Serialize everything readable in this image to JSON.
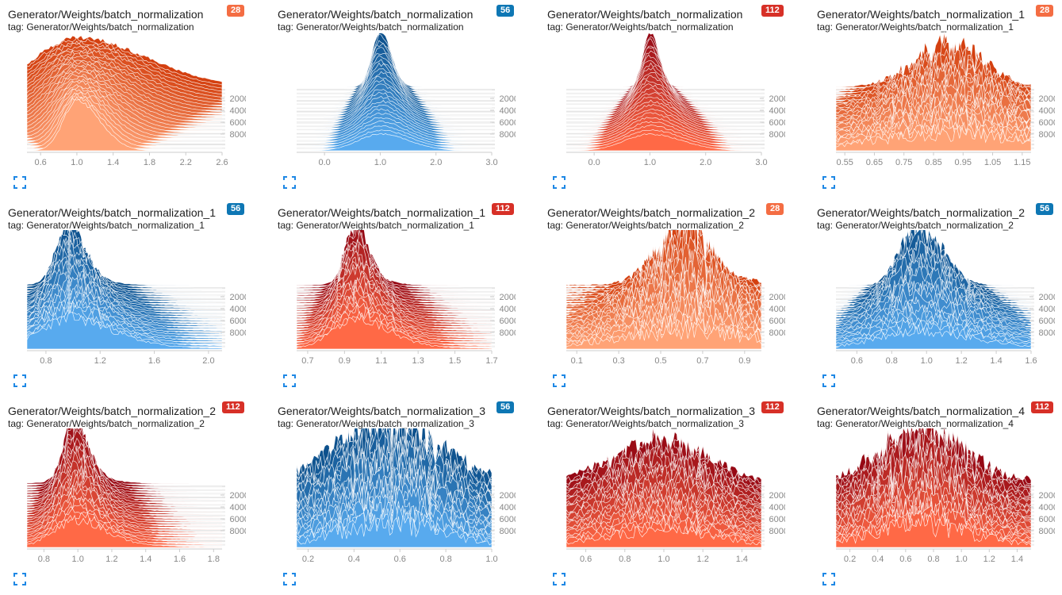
{
  "colors": {
    "c28": "#f46d43",
    "c56": "#0e77b4",
    "c112": "#d73027"
  },
  "palettes": {
    "28": {
      "light": [
        255,
        163,
        118
      ],
      "dark": [
        212,
        64,
        16
      ],
      "badge": "#f46d43"
    },
    "56": {
      "light": [
        88,
        170,
        238
      ],
      "dark": [
        12,
        80,
        140
      ],
      "badge": "#0e77b4"
    },
    "112": {
      "light": [
        255,
        105,
        70
      ],
      "dark": [
        150,
        8,
        20
      ],
      "badge": "#d73027"
    }
  },
  "panels": [
    {
      "title": "Generator/Weights/batch_normalization",
      "tag": "tag: Generator/Weights/batch_normalization",
      "badge": "28",
      "chart_data": {
        "type": "histogram",
        "xlim": [
          0.45,
          2.6
        ],
        "xticks": [
          0.6,
          1.0,
          1.4,
          1.8,
          2.2,
          2.6
        ],
        "xtick_labels": [
          "0.6",
          "1.0",
          "1.4",
          "1.8",
          "2.2",
          "2.6"
        ],
        "step_ticks": [
          "2000",
          "4000",
          "6000",
          "8000"
        ],
        "center": 1.0,
        "spread": [
          0.15,
          0.45
        ],
        "skew": 0.7,
        "tail": 0,
        "noise": 0.05,
        "peak_front": 0.9,
        "peak_back": 0.9
      }
    },
    {
      "title": "Generator/Weights/batch_normalization",
      "tag": "tag: Generator/Weights/batch_normalization",
      "badge": "56",
      "chart_data": {
        "type": "histogram",
        "xlim": [
          -0.5,
          3.0
        ],
        "xticks": [
          0.0,
          1.0,
          2.0,
          3.0
        ],
        "xtick_labels": [
          "0.0",
          "1.0",
          "2.0",
          "3.0"
        ],
        "step_ticks": [
          "2000",
          "4000",
          "6000",
          "8000"
        ],
        "center": 1.0,
        "spread": [
          0.4,
          0.15
        ],
        "skew": 0.3,
        "tail": 0,
        "noise": 0.05,
        "peak_front": 0.3,
        "peak_back": 1.0
      }
    },
    {
      "title": "Generator/Weights/batch_normalization",
      "tag": "tag: Generator/Weights/batch_normalization",
      "badge": "112",
      "chart_data": {
        "type": "histogram",
        "xlim": [
          -0.5,
          3.0
        ],
        "xticks": [
          0.0,
          1.0,
          2.0,
          3.0
        ],
        "xtick_labels": [
          "0.0",
          "1.0",
          "2.0",
          "3.0"
        ],
        "step_ticks": [
          "2000",
          "4000",
          "6000",
          "8000"
        ],
        "center": 1.0,
        "spread": [
          0.45,
          0.12
        ],
        "skew": 0.3,
        "tail": 0,
        "noise": 0.05,
        "peak_front": 0.3,
        "peak_back": 1.0
      }
    },
    {
      "title": "Generator/Weights/batch_normalization_1",
      "tag": "tag: Generator/Weights/batch_normalization_1",
      "badge": "28",
      "chart_data": {
        "type": "histogram",
        "xlim": [
          0.52,
          1.18
        ],
        "xticks": [
          0.55,
          0.65,
          0.75,
          0.85,
          0.95,
          1.05,
          1.15
        ],
        "xtick_labels": [
          "0.55",
          "0.65",
          "0.75",
          "0.85",
          "0.95",
          "1.05",
          "1.15"
        ],
        "step_ticks": [
          "2000",
          "4000",
          "6000",
          "8000"
        ],
        "center": 0.9,
        "spread": [
          0.25,
          0.12
        ],
        "skew": 0,
        "tail": 0,
        "noise": 0.45,
        "peak_front": 0.3,
        "peak_back": 0.7
      }
    },
    {
      "title": "Generator/Weights/batch_normalization_1",
      "tag": "tag: Generator/Weights/batch_normalization_1",
      "badge": "56",
      "chart_data": {
        "type": "histogram",
        "xlim": [
          0.66,
          2.1
        ],
        "xticks": [
          0.8,
          1.2,
          1.6,
          2.0
        ],
        "xtick_labels": [
          "0.8",
          "1.2",
          "1.6",
          "2.0"
        ],
        "step_ticks": [
          "2000",
          "4000",
          "6000",
          "8000"
        ],
        "center": 0.95,
        "spread": [
          0.2,
          0.08
        ],
        "skew": 0.6,
        "tail": 1,
        "noise": 0.2,
        "peak_front": 0.5,
        "peak_back": 1.0
      }
    },
    {
      "title": "Generator/Weights/batch_normalization_1",
      "tag": "tag: Generator/Weights/batch_normalization_1",
      "badge": "112",
      "chart_data": {
        "type": "histogram",
        "xlim": [
          0.64,
          1.7
        ],
        "xticks": [
          0.7,
          0.9,
          1.1,
          1.3,
          1.5,
          1.7
        ],
        "xtick_labels": [
          "0.7",
          "0.9",
          "1.1",
          "1.3",
          "1.5",
          "1.7"
        ],
        "step_ticks": [
          "2000",
          "4000",
          "6000",
          "8000"
        ],
        "center": 0.95,
        "spread": [
          0.12,
          0.05
        ],
        "skew": 0.5,
        "tail": 1,
        "noise": 0.2,
        "peak_front": 0.5,
        "peak_back": 1.0
      }
    },
    {
      "title": "Generator/Weights/batch_normalization_2",
      "tag": "tag: Generator/Weights/batch_normalization_2",
      "badge": "28",
      "chart_data": {
        "type": "histogram",
        "xlim": [
          0.05,
          0.98
        ],
        "xticks": [
          0.1,
          0.3,
          0.5,
          0.7,
          0.9
        ],
        "xtick_labels": [
          "0.1",
          "0.3",
          "0.5",
          "0.7",
          "0.9"
        ],
        "step_ticks": [
          "2000",
          "4000",
          "6000",
          "8000"
        ],
        "center": 0.6,
        "spread": [
          0.3,
          0.12
        ],
        "skew": 0,
        "tail": 1,
        "noise": 0.5,
        "peak_front": 0.3,
        "peak_back": 0.9
      }
    },
    {
      "title": "Generator/Weights/batch_normalization_2",
      "tag": "tag: Generator/Weights/batch_normalization_2",
      "badge": "56",
      "chart_data": {
        "type": "histogram",
        "xlim": [
          0.48,
          1.6
        ],
        "xticks": [
          0.6,
          0.8,
          1.0,
          1.2,
          1.4,
          1.6
        ],
        "xtick_labels": [
          "0.6",
          "0.8",
          "1.0",
          "1.2",
          "1.4",
          "1.6"
        ],
        "step_ticks": [
          "2000",
          "4000",
          "6000",
          "8000"
        ],
        "center": 0.95,
        "spread": [
          0.25,
          0.1
        ],
        "skew": 0.4,
        "tail": 0,
        "noise": 0.35,
        "peak_front": 0.3,
        "peak_back": 1.0
      }
    },
    {
      "title": "Generator/Weights/batch_normalization_2",
      "tag": "tag: Generator/Weights/batch_normalization_2",
      "badge": "112",
      "chart_data": {
        "type": "histogram",
        "xlim": [
          0.7,
          1.85
        ],
        "xticks": [
          0.8,
          1.0,
          1.2,
          1.4,
          1.6,
          1.8
        ],
        "xtick_labels": [
          "0.8",
          "1.0",
          "1.2",
          "1.4",
          "1.6",
          "1.8"
        ],
        "step_ticks": [
          "2000",
          "4000",
          "6000",
          "8000"
        ],
        "center": 0.97,
        "spread": [
          0.12,
          0.06
        ],
        "skew": 0.5,
        "tail": 1,
        "noise": 0.2,
        "peak_front": 0.45,
        "peak_back": 1.0
      }
    },
    {
      "title": "Generator/Weights/batch_normalization_3",
      "tag": "tag: Generator/Weights/batch_normalization_3",
      "badge": "56",
      "chart_data": {
        "type": "histogram",
        "xlim": [
          0.15,
          1.0
        ],
        "xticks": [
          0.2,
          0.4,
          0.6,
          0.8,
          1.0
        ],
        "xtick_labels": [
          "0.2",
          "0.4",
          "0.6",
          "0.8",
          "1.0"
        ],
        "step_ticks": [
          "2000",
          "4000",
          "6000",
          "8000"
        ],
        "center": 0.55,
        "spread": [
          0.25,
          0.25
        ],
        "skew": 0,
        "tail": 0,
        "noise": 0.55,
        "peak_front": 0.4,
        "peak_back": 0.9
      }
    },
    {
      "title": "Generator/Weights/batch_normalization_3",
      "tag": "tag: Generator/Weights/batch_normalization_3",
      "badge": "112",
      "chart_data": {
        "type": "histogram",
        "xlim": [
          0.5,
          1.5
        ],
        "xticks": [
          0.6,
          0.8,
          1.0,
          1.2,
          1.4
        ],
        "xtick_labels": [
          "0.6",
          "0.8",
          "1.0",
          "1.2",
          "1.4"
        ],
        "step_ticks": [
          "2000",
          "4000",
          "6000",
          "8000"
        ],
        "center": 0.98,
        "spread": [
          0.3,
          0.25
        ],
        "skew": 0,
        "tail": 0,
        "noise": 0.4,
        "peak_front": 0.3,
        "peak_back": 0.75
      }
    },
    {
      "title": "Generator/Weights/batch_normalization_4",
      "tag": "tag: Generator/Weights/batch_normalization_4",
      "badge": "112",
      "chart_data": {
        "type": "histogram",
        "xlim": [
          0.1,
          1.5
        ],
        "xticks": [
          0.2,
          0.4,
          0.6,
          0.8,
          1.0,
          1.2,
          1.4
        ],
        "xtick_labels": [
          "0.2",
          "0.4",
          "0.6",
          "0.8",
          "1.0",
          "1.2",
          "1.4"
        ],
        "step_ticks": [
          "2000",
          "4000",
          "6000",
          "8000"
        ],
        "center": 0.7,
        "spread": [
          0.35,
          0.3
        ],
        "skew": 0,
        "tail": 1,
        "noise": 0.55,
        "peak_front": 0.35,
        "peak_back": 0.8
      }
    }
  ]
}
